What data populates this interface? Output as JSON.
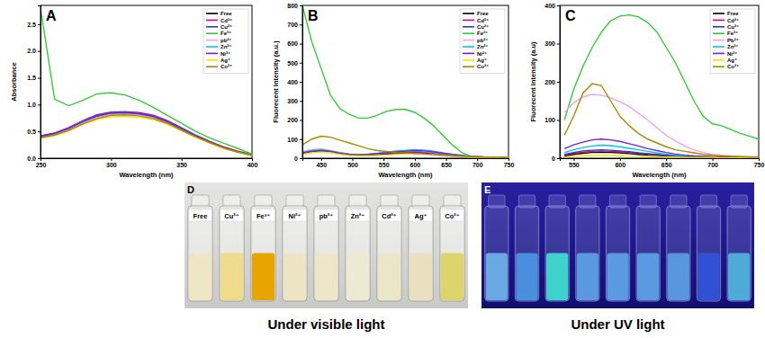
{
  "chart_data": [
    {
      "type": "line",
      "title": "A",
      "x_label": "Wavelength (nm)",
      "y_label": "Absorbance",
      "xlim": [
        250,
        400
      ],
      "xticks": [
        250,
        300,
        350,
        400
      ],
      "ylim": [
        0,
        2.85
      ],
      "yticks": [
        {
          "value": 0,
          "label": "0.0"
        },
        {
          "value": 0.5,
          "label": "0.5"
        },
        {
          "value": 1,
          "label": "1.0"
        },
        {
          "value": 1.5,
          "label": "1.5"
        },
        {
          "value": 2,
          "label": "2.0"
        },
        {
          "value": 2.5,
          "label": "2.5"
        }
      ],
      "legend": "upper right",
      "x": [
        250,
        260,
        270,
        280,
        290,
        300,
        310,
        320,
        330,
        340,
        350,
        360,
        370,
        380,
        390,
        400
      ],
      "series": [
        {
          "name": "Free",
          "color": "#000000",
          "values": [
            0.4,
            0.45,
            0.55,
            0.68,
            0.78,
            0.84,
            0.85,
            0.83,
            0.78,
            0.68,
            0.55,
            0.42,
            0.3,
            0.2,
            0.12,
            0.06
          ]
        },
        {
          "name": "Cd²⁺",
          "color": "#e6007e",
          "values": [
            0.42,
            0.47,
            0.57,
            0.7,
            0.81,
            0.86,
            0.87,
            0.85,
            0.8,
            0.7,
            0.57,
            0.43,
            0.31,
            0.21,
            0.13,
            0.07
          ]
        },
        {
          "name": "Cu²⁺",
          "color": "#1f3fd0",
          "values": [
            0.41,
            0.46,
            0.56,
            0.69,
            0.8,
            0.85,
            0.86,
            0.84,
            0.79,
            0.69,
            0.56,
            0.43,
            0.31,
            0.2,
            0.12,
            0.06
          ]
        },
        {
          "name": "Fe³⁺",
          "color": "#33cc33",
          "values": [
            2.8,
            1.1,
            0.98,
            1.08,
            1.2,
            1.22,
            1.18,
            1.08,
            0.95,
            0.8,
            0.65,
            0.5,
            0.38,
            0.28,
            0.18,
            0.08
          ]
        },
        {
          "name": "pb²⁺",
          "color": "#f0a0f0",
          "values": [
            0.39,
            0.44,
            0.53,
            0.66,
            0.76,
            0.82,
            0.83,
            0.81,
            0.76,
            0.66,
            0.53,
            0.41,
            0.29,
            0.19,
            0.11,
            0.06
          ]
        },
        {
          "name": "Zn²⁺",
          "color": "#00c8d8",
          "values": [
            0.4,
            0.46,
            0.56,
            0.69,
            0.79,
            0.84,
            0.85,
            0.83,
            0.78,
            0.68,
            0.55,
            0.42,
            0.3,
            0.2,
            0.12,
            0.06
          ]
        },
        {
          "name": "Ni²⁺",
          "color": "#7a1fd0",
          "values": [
            0.41,
            0.46,
            0.56,
            0.68,
            0.79,
            0.84,
            0.85,
            0.83,
            0.78,
            0.68,
            0.55,
            0.42,
            0.3,
            0.2,
            0.12,
            0.06
          ]
        },
        {
          "name": "Ag⁺",
          "color": "#f5e400",
          "values": [
            0.37,
            0.42,
            0.51,
            0.63,
            0.72,
            0.77,
            0.78,
            0.76,
            0.72,
            0.63,
            0.51,
            0.39,
            0.28,
            0.18,
            0.11,
            0.05
          ]
        },
        {
          "name": "Co²⁺",
          "color": "#a88a00",
          "values": [
            0.38,
            0.43,
            0.52,
            0.64,
            0.74,
            0.8,
            0.81,
            0.79,
            0.74,
            0.65,
            0.52,
            0.4,
            0.29,
            0.19,
            0.11,
            0.05
          ]
        }
      ]
    },
    {
      "type": "line",
      "title": "B",
      "x_label": "Wavelength (nm)",
      "y_label": "Fluorecent Intensity (a.u.)",
      "xlim": [
        420,
        750
      ],
      "xticks": [
        450,
        500,
        550,
        600,
        650,
        700,
        750
      ],
      "ylim": [
        0,
        800
      ],
      "yticks": [
        0,
        100,
        200,
        300,
        400,
        500,
        600,
        700,
        800
      ],
      "legend": "upper right",
      "x": [
        420,
        435,
        450,
        465,
        480,
        495,
        510,
        525,
        540,
        555,
        570,
        585,
        600,
        615,
        630,
        645,
        660,
        675,
        690,
        705,
        720,
        735,
        750
      ],
      "series": [
        {
          "name": "Free",
          "color": "#000000",
          "values": [
            25,
            35,
            40,
            35,
            25,
            18,
            15,
            15,
            18,
            22,
            25,
            28,
            30,
            28,
            25,
            20,
            15,
            12,
            8,
            6,
            5,
            4,
            3
          ]
        },
        {
          "name": "Cd²⁺",
          "color": "#e6007e",
          "values": [
            28,
            38,
            42,
            36,
            26,
            19,
            16,
            17,
            20,
            24,
            28,
            31,
            32,
            30,
            26,
            21,
            16,
            12,
            9,
            6,
            5,
            4,
            3
          ]
        },
        {
          "name": "Cu²⁺",
          "color": "#1f3fd0",
          "values": [
            30,
            40,
            44,
            38,
            28,
            20,
            17,
            18,
            22,
            27,
            31,
            34,
            35,
            33,
            28,
            22,
            17,
            13,
            9,
            7,
            5,
            4,
            3
          ]
        },
        {
          "name": "Fe³⁺",
          "color": "#33cc33",
          "values": [
            800,
            610,
            470,
            330,
            260,
            230,
            210,
            210,
            225,
            245,
            255,
            255,
            240,
            210,
            170,
            120,
            70,
            30,
            10,
            5,
            5,
            5,
            5
          ]
        },
        {
          "name": "pb²⁺",
          "color": "#f0a0f0",
          "values": [
            35,
            45,
            48,
            40,
            30,
            22,
            19,
            20,
            25,
            30,
            34,
            37,
            38,
            35,
            30,
            24,
            18,
            13,
            9,
            7,
            5,
            4,
            3
          ]
        },
        {
          "name": "Zn²⁺",
          "color": "#00c8d8",
          "values": [
            30,
            40,
            45,
            38,
            28,
            21,
            19,
            21,
            26,
            32,
            38,
            42,
            45,
            43,
            37,
            29,
            21,
            15,
            10,
            7,
            5,
            4,
            3
          ]
        },
        {
          "name": "Ni²⁺",
          "color": "#7a1fd0",
          "values": [
            28,
            36,
            40,
            35,
            26,
            20,
            18,
            20,
            24,
            29,
            33,
            37,
            40,
            38,
            33,
            26,
            19,
            14,
            9,
            7,
            5,
            4,
            3
          ]
        },
        {
          "name": "Ag⁺",
          "color": "#f5e400",
          "values": [
            20,
            28,
            32,
            28,
            20,
            14,
            12,
            12,
            14,
            17,
            20,
            22,
            24,
            22,
            19,
            15,
            12,
            9,
            6,
            5,
            4,
            3,
            2
          ]
        },
        {
          "name": "Co²⁺",
          "color": "#a88a00",
          "values": [
            70,
            100,
            115,
            110,
            95,
            80,
            65,
            50,
            40,
            35,
            30,
            28,
            25,
            22,
            18,
            15,
            12,
            10,
            8,
            6,
            5,
            4,
            3
          ]
        }
      ]
    },
    {
      "type": "line",
      "title": "C",
      "x_label": "Wavelength (nm)",
      "y_label": "Fluorecent Intensity (a.u)",
      "xlim": [
        535,
        750
      ],
      "xticks": [
        550,
        600,
        650,
        700,
        750
      ],
      "ylim": [
        0,
        400
      ],
      "yticks": [
        0,
        100,
        200,
        300,
        400
      ],
      "legend": "upper right",
      "x": [
        540,
        550,
        560,
        570,
        580,
        590,
        600,
        610,
        620,
        630,
        640,
        650,
        660,
        670,
        680,
        690,
        700,
        710,
        720,
        730,
        740,
        750
      ],
      "series": [
        {
          "name": "Free",
          "color": "#000000",
          "values": [
            6,
            10,
            13,
            15,
            16,
            15,
            14,
            12,
            10,
            8,
            7,
            6,
            5,
            4,
            3,
            3,
            2,
            2,
            2,
            2,
            1,
            1
          ]
        },
        {
          "name": "Cd²⁺",
          "color": "#e6007e",
          "values": [
            8,
            13,
            16,
            18,
            19,
            18,
            17,
            15,
            13,
            11,
            9,
            7,
            6,
            5,
            4,
            3,
            3,
            2,
            2,
            2,
            2,
            2
          ]
        },
        {
          "name": "Cu²⁺",
          "color": "#1f3fd0",
          "values": [
            10,
            15,
            19,
            21,
            22,
            21,
            19,
            17,
            14,
            12,
            10,
            8,
            6,
            5,
            4,
            3,
            3,
            2,
            2,
            2,
            2,
            2
          ]
        },
        {
          "name": "Fe³⁺",
          "color": "#33cc33",
          "values": [
            100,
            180,
            240,
            290,
            330,
            360,
            372,
            375,
            370,
            355,
            330,
            290,
            250,
            200,
            150,
            110,
            90,
            85,
            75,
            65,
            58,
            50
          ]
        },
        {
          "name": "Pb²⁺",
          "color": "#f0a0f0",
          "values": [
            120,
            145,
            160,
            167,
            165,
            158,
            148,
            135,
            118,
            100,
            80,
            60,
            45,
            32,
            22,
            15,
            10,
            8,
            6,
            5,
            4,
            3
          ]
        },
        {
          "name": "Zn²⁺",
          "color": "#00c8d8",
          "values": [
            15,
            22,
            28,
            32,
            34,
            33,
            30,
            26,
            22,
            18,
            14,
            11,
            8,
            6,
            5,
            4,
            3,
            3,
            2,
            2,
            2,
            2
          ]
        },
        {
          "name": "Ni²⁺",
          "color": "#7a1fd0",
          "values": [
            25,
            35,
            42,
            48,
            50,
            48,
            44,
            38,
            32,
            25,
            20,
            15,
            11,
            8,
            6,
            5,
            4,
            3,
            3,
            2,
            2,
            2
          ]
        },
        {
          "name": "Ag⁺",
          "color": "#f5e400",
          "values": [
            3,
            5,
            6,
            7,
            7,
            7,
            6,
            5,
            5,
            4,
            4,
            3,
            3,
            2,
            2,
            2,
            2,
            1,
            1,
            1,
            1,
            1
          ]
        },
        {
          "name": "Co²⁺",
          "color": "#a88a00",
          "values": [
            60,
            110,
            170,
            195,
            190,
            150,
            110,
            85,
            65,
            50,
            40,
            30,
            22,
            18,
            14,
            10,
            8,
            6,
            5,
            4,
            3,
            2
          ]
        }
      ]
    }
  ],
  "photos": [
    {
      "title": "D",
      "caption": "Under visible light",
      "labels": [
        "Free",
        "Cu²⁺",
        "Fe³⁺",
        "Ni²⁺",
        "pb²⁺",
        "Zn²⁺",
        "Cd²⁺",
        "Ag⁺",
        "Co²⁺"
      ],
      "colors": [
        "#efe6c6",
        "#f0da8c",
        "#e8a400",
        "#ede4c4",
        "#eee6c8",
        "#ede9d2",
        "#ece6c8",
        "#e8e0bf",
        "#ddd46c"
      ]
    },
    {
      "title": "E",
      "caption": "Under UV light",
      "colors": [
        "#6aa8e4",
        "#4a8ede",
        "#3fd2cc",
        "#5a98e0",
        "#5a9ae2",
        "#5a9ae0",
        "#5896de",
        "#3250d4",
        "#4eaad6"
      ]
    }
  ]
}
